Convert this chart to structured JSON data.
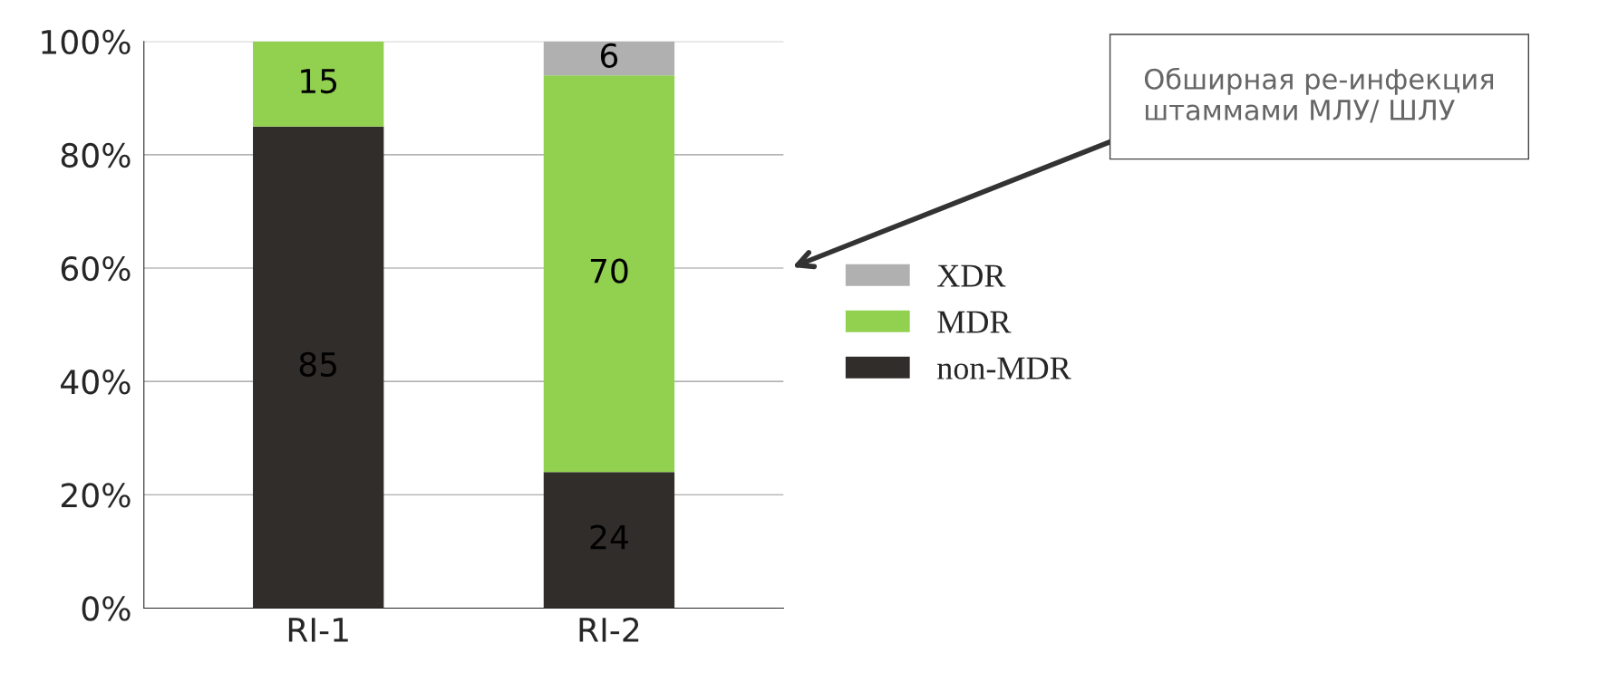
{
  "chart_data": {
    "type": "bar",
    "stacked": true,
    "categories": [
      "RI-1",
      "RI-2"
    ],
    "series": [
      {
        "name": "non-MDR",
        "color": "#302d2b",
        "values": [
          85,
          24
        ],
        "value_labels": [
          "85",
          "24"
        ]
      },
      {
        "name": "MDR",
        "color": "#92d050",
        "values": [
          15,
          70
        ],
        "value_labels": [
          "15",
          "70"
        ]
      },
      {
        "name": "XDR",
        "color": "#b0b0b0",
        "values": [
          0,
          6
        ],
        "value_labels": [
          null,
          "6"
        ]
      }
    ],
    "ylim": [
      0,
      100
    ],
    "yticks": [
      {
        "value": 0,
        "label": "0%"
      },
      {
        "value": 20,
        "label": "20%"
      },
      {
        "value": 40,
        "label": "40%"
      },
      {
        "value": 60,
        "label": "60%"
      },
      {
        "value": 80,
        "label": "80%"
      },
      {
        "value": 100,
        "label": "100%"
      }
    ],
    "grid": "y",
    "legend": "right",
    "annotations": [
      "Обширная ре-инфекция штаммами МЛУ/ ШЛУ"
    ]
  }
}
